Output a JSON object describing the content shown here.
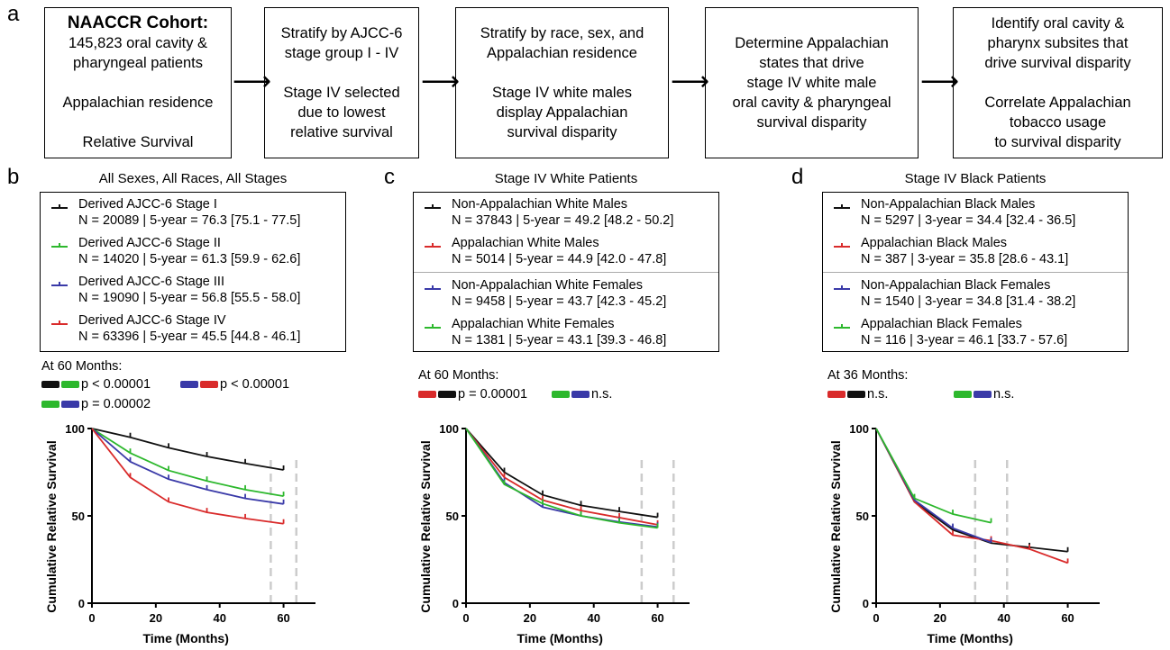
{
  "panel_letters": [
    "a",
    "b",
    "c",
    "d"
  ],
  "flow": {
    "box1": {
      "title": "NAACCR Cohort:",
      "line1": "145,823 oral cavity &",
      "line2": "pharyngeal patients",
      "line3": "Appalachian residence",
      "line4": "Relative Survival"
    },
    "box2": {
      "line1": "Stratify by AJCC-6",
      "line2": "stage group I - IV",
      "line3": "Stage IV selected",
      "line4": "due to lowest",
      "line5": "relative survival"
    },
    "box3": {
      "line1": "Stratify by race, sex, and",
      "line2": "Appalachian residence",
      "line3": "Stage IV white males",
      "line4": "display Appalachian",
      "line5": "survival disparity"
    },
    "box4": {
      "line1": "Determine Appalachian",
      "line2": "states that drive",
      "line3": "stage IV white male",
      "line4": "oral cavity & pharyngeal",
      "line5": "survival disparity"
    },
    "box5": {
      "line1": "Identify oral cavity &",
      "line2": "pharynx subsites that",
      "line3": "drive survival disparity",
      "line4": "Correlate Appalachian",
      "line5": "tobacco usage",
      "line6": "to survival disparity"
    },
    "arrow": "⟶"
  },
  "colors": {
    "black": "#111111",
    "green": "#2db82d",
    "blue": "#3a3aa8",
    "red": "#d92b2b",
    "grid": "#cccccc"
  },
  "panel_b": {
    "title": "All Sexes, All Races, All Stages",
    "legend": [
      {
        "name": "Derived AJCC-6 Stage I",
        "stats": "N = 20089 | 5-year = 76.3 [75.1 - 77.5]",
        "color": "#111111"
      },
      {
        "name": "Derived AJCC-6 Stage II",
        "stats": "N = 14020 | 5-year = 61.3 [59.9 - 62.6]",
        "color": "#2db82d"
      },
      {
        "name": "Derived AJCC-6 Stage III",
        "stats": "N = 19090 | 5-year = 56.8 [55.5 - 58.0]",
        "color": "#3a3aa8"
      },
      {
        "name": "Derived AJCC-6 Stage IV",
        "stats": "N = 63396 | 5-year = 45.5 [44.8 - 46.1]",
        "color": "#d92b2b"
      }
    ],
    "at_months": "At 60 Months:",
    "pvals": [
      {
        "colors": [
          "#111111",
          "#2db82d"
        ],
        "text": "p < 0.00001"
      },
      {
        "colors": [
          "#3a3aa8",
          "#d92b2b"
        ],
        "text": "p < 0.00001"
      },
      {
        "colors": [
          "#2db82d",
          "#3a3aa8"
        ],
        "text": "p = 0.00002"
      }
    ]
  },
  "panel_c": {
    "title": "Stage IV White Patients",
    "legend": [
      {
        "name": "Non-Appalachian White Males",
        "stats": "N = 37843 | 5-year = 49.2 [48.2 - 50.2]",
        "color": "#111111"
      },
      {
        "name": "Appalachian White Males",
        "stats": "N = 5014 | 5-year = 44.9 [42.0 - 47.8]",
        "color": "#d92b2b"
      },
      {
        "name": "Non-Appalachian White Females",
        "stats": "N = 9458 | 5-year = 43.7 [42.3 - 45.2]",
        "color": "#3a3aa8"
      },
      {
        "name": "Appalachian White Females",
        "stats": "N = 1381 | 5-year = 43.1 [39.3 - 46.8]",
        "color": "#2db82d"
      }
    ],
    "at_months": "At 60 Months:",
    "pvals": [
      {
        "colors": [
          "#d92b2b",
          "#111111"
        ],
        "text": "p = 0.00001"
      },
      {
        "colors": [
          "#2db82d",
          "#3a3aa8"
        ],
        "text": "n.s."
      }
    ]
  },
  "panel_d": {
    "title": "Stage IV Black Patients",
    "legend": [
      {
        "name": "Non-Appalachian Black Males",
        "stats": "N = 5297 | 3-year = 34.4 [32.4 - 36.5]",
        "color": "#111111"
      },
      {
        "name": "Appalachian Black Males",
        "stats": "N = 387 | 3-year = 35.8 [28.6 - 43.1]",
        "color": "#d92b2b"
      },
      {
        "name": "Non-Appalachian Black Females",
        "stats": "N = 1540 | 3-year = 34.8 [31.4 - 38.2]",
        "color": "#3a3aa8"
      },
      {
        "name": "Appalachian Black Females",
        "stats": "N = 116 | 3-year = 46.1 [33.7 - 57.6]",
        "color": "#2db82d"
      }
    ],
    "at_months": "At 36 Months:",
    "pvals": [
      {
        "colors": [
          "#d92b2b",
          "#111111"
        ],
        "text": "n.s."
      },
      {
        "colors": [
          "#2db82d",
          "#3a3aa8"
        ],
        "text": "n.s."
      }
    ]
  },
  "chart_data": [
    {
      "type": "line",
      "title": "All Sexes, All Races, All Stages",
      "xlabel": "Time (Months)",
      "ylabel": "Cumulative Relative Survival",
      "xlim": [
        0,
        70
      ],
      "ylim": [
        0,
        100
      ],
      "xticks": [
        "0",
        "20",
        "40",
        "60"
      ],
      "yticks": [
        "0",
        "50",
        "100"
      ],
      "reference_lines_x": [
        56,
        64
      ],
      "x": [
        0,
        12,
        24,
        36,
        48,
        60
      ],
      "series": [
        {
          "name": "Derived AJCC-6 Stage I",
          "color": "#111111",
          "values": [
            100,
            95,
            89,
            84,
            80,
            76.3
          ]
        },
        {
          "name": "Derived AJCC-6 Stage II",
          "color": "#2db82d",
          "values": [
            100,
            86,
            76,
            70,
            65,
            61.3
          ]
        },
        {
          "name": "Derived AJCC-6 Stage III",
          "color": "#3a3aa8",
          "values": [
            100,
            81,
            71,
            65,
            60,
            56.8
          ]
        },
        {
          "name": "Derived AJCC-6 Stage IV",
          "color": "#d92b2b",
          "values": [
            100,
            72,
            58,
            52,
            48.5,
            45.5
          ]
        }
      ]
    },
    {
      "type": "line",
      "title": "Stage IV White Patients",
      "xlabel": "Time (Months)",
      "ylabel": "Cumulative Relative Survival",
      "xlim": [
        0,
        70
      ],
      "ylim": [
        0,
        100
      ],
      "xticks": [
        "0",
        "20",
        "40",
        "60"
      ],
      "yticks": [
        "0",
        "50",
        "100"
      ],
      "reference_lines_x": [
        55,
        65
      ],
      "x": [
        0,
        12,
        24,
        36,
        48,
        60
      ],
      "series": [
        {
          "name": "Non-Appalachian White Males",
          "color": "#111111",
          "values": [
            100,
            75,
            62,
            56,
            52.5,
            49.2
          ]
        },
        {
          "name": "Appalachian White Males",
          "color": "#d92b2b",
          "values": [
            100,
            72,
            59,
            53,
            49,
            44.9
          ]
        },
        {
          "name": "Non-Appalachian White Females",
          "color": "#3a3aa8",
          "values": [
            100,
            69,
            55,
            50,
            46.5,
            43.7
          ]
        },
        {
          "name": "Appalachian White Females",
          "color": "#2db82d",
          "values": [
            100,
            68,
            57,
            50,
            46,
            43.1
          ]
        }
      ]
    },
    {
      "type": "line",
      "title": "Stage IV Black Patients",
      "xlabel": "Time (Months)",
      "ylabel": "Cumulative Relative Survival",
      "xlim": [
        0,
        70
      ],
      "ylim": [
        0,
        100
      ],
      "xticks": [
        "0",
        "20",
        "40",
        "60"
      ],
      "yticks": [
        "0",
        "50",
        "100"
      ],
      "reference_lines_x": [
        31,
        41
      ],
      "series": [
        {
          "name": "Non-Appalachian Black Males",
          "color": "#111111",
          "x": [
            0,
            12,
            24,
            36,
            48,
            60
          ],
          "values": [
            100,
            58,
            42,
            34.4,
            32,
            29.5
          ]
        },
        {
          "name": "Appalachian Black Males",
          "color": "#d92b2b",
          "x": [
            0,
            12,
            24,
            36,
            48,
            60
          ],
          "values": [
            100,
            58,
            39,
            35.8,
            31,
            23
          ]
        },
        {
          "name": "Non-Appalachian Black Females",
          "color": "#3a3aa8",
          "x": [
            0,
            12,
            24,
            36
          ],
          "values": [
            100,
            59,
            43,
            34.8
          ]
        },
        {
          "name": "Appalachian Black Females",
          "color": "#2db82d",
          "x": [
            0,
            12,
            24,
            36
          ],
          "values": [
            100,
            60,
            51,
            46.1
          ]
        }
      ]
    }
  ]
}
